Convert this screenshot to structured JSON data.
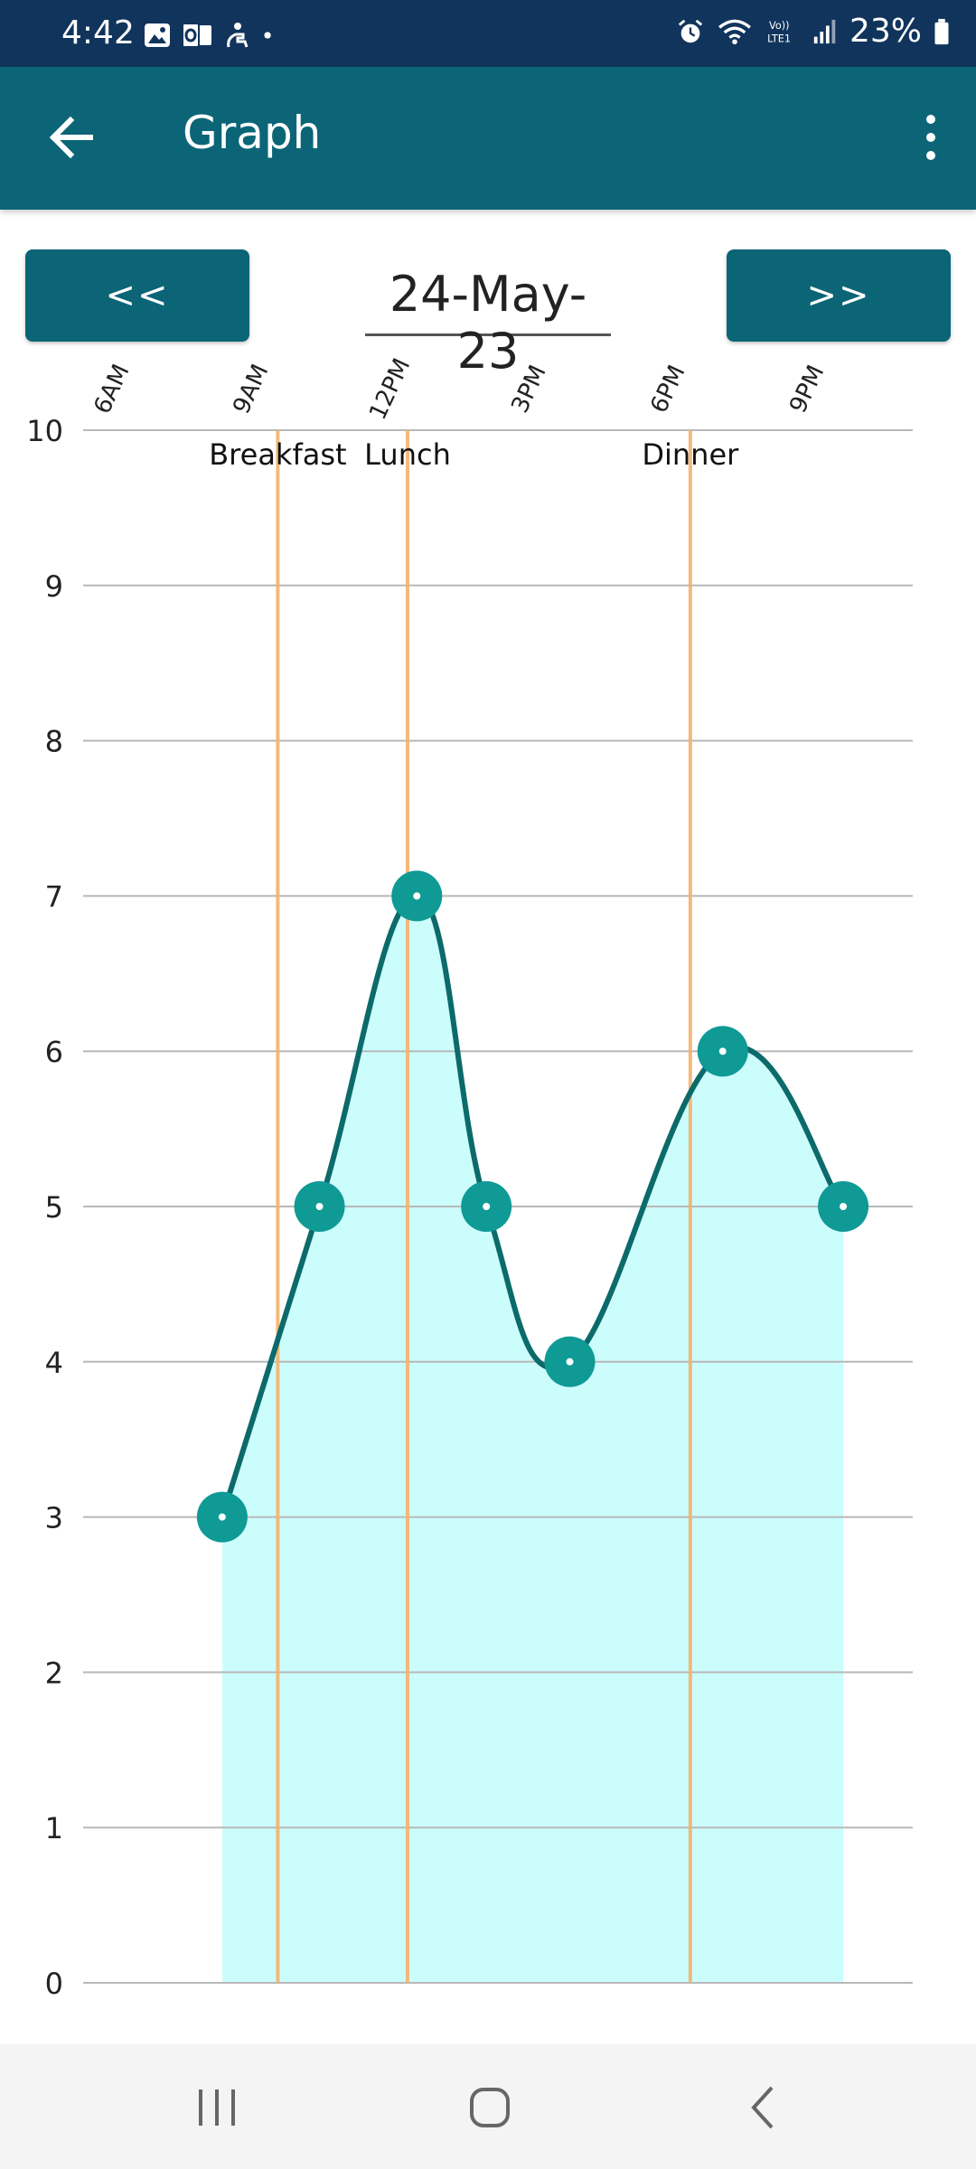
{
  "status_bar": {
    "time": "4:42",
    "battery": "23%",
    "icons": [
      "gallery-icon",
      "outlook-icon",
      "accessibility-icon",
      "dot-icon",
      "alarm-icon",
      "wifi-icon",
      "volte-icon",
      "signal-icon",
      "battery-icon"
    ]
  },
  "app_bar": {
    "title": "Graph",
    "back_icon": "arrow-left-icon",
    "menu_icon": "more-vertical-icon"
  },
  "date_nav": {
    "prev_label": "<<",
    "next_label": ">>",
    "date": "24-May-23"
  },
  "chart_data": {
    "type": "line",
    "x_ticks": [
      "6AM",
      "9AM",
      "12PM",
      "3PM",
      "6PM",
      "9PM"
    ],
    "x_tick_hours": [
      6,
      9,
      12,
      15,
      18,
      21
    ],
    "y_ticks": [
      "0",
      "1",
      "2",
      "3",
      "4",
      "5",
      "6",
      "7",
      "8",
      "9",
      "10"
    ],
    "ylim": [
      0,
      10
    ],
    "xlim_hours": [
      5,
      22.9
    ],
    "grid": true,
    "series": [
      {
        "x_hours": [
          8.0,
          10.1,
          12.2,
          13.7,
          15.5,
          18.8,
          21.4
        ],
        "values": [
          3,
          5,
          7,
          5,
          4,
          6,
          5
        ]
      }
    ],
    "markers": [
      {
        "label": "Breakfast",
        "x_hours": 9.2
      },
      {
        "label": "Lunch",
        "x_hours": 12.0
      },
      {
        "label": "Dinner",
        "x_hours": 18.1
      }
    ],
    "colors": {
      "line": "#0c6a6a",
      "fill": "#ccfdfd",
      "point": "#0f9a96",
      "marker": "#f3b36d",
      "grid": "#b8b8b8"
    }
  },
  "bottom_nav": {
    "icons": [
      "recents-icon",
      "home-icon",
      "back-icon"
    ]
  }
}
